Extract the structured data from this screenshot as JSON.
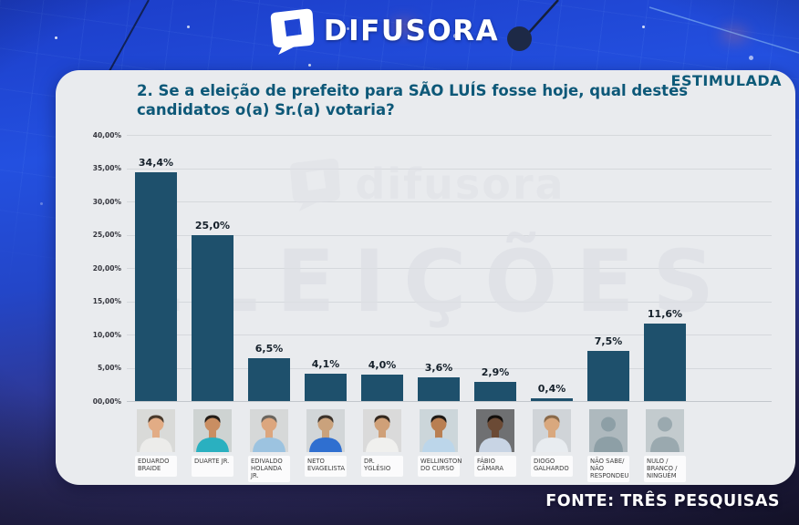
{
  "brand": {
    "name": "DIFUSORA",
    "watermark_name": "difusora"
  },
  "labels": {
    "methodology": "ESTIMULADA",
    "watermark_word": "ELEIÇÕES",
    "source": "FONTE: TRÊS PESQUISAS"
  },
  "question": "2. Se a eleição de prefeito para SÃO LUÍS fosse hoje, qual destes\ncandidatos o(a) Sr.(a) votaria?",
  "chart_data": {
    "type": "bar",
    "title": "2. Se a eleição de prefeito para SÃO LUÍS fosse hoje, qual destes candidatos o(a) Sr.(a) votaria?",
    "categories": [
      "EDUARDO BRAIDE",
      "DUARTE JR.",
      "EDIVALDO HOLANDA JR.",
      "NETO EVAGELISTA",
      "DR. YGLÉSIO",
      "WELLINGTON DO CURSO",
      "FÁBIO CÂMARA",
      "DIOGO GALHARDO",
      "NÃO SABE/ NÃO RESPONDEU",
      "NULO / BRANCO / NINGUÉM"
    ],
    "values": [
      34.4,
      25.0,
      6.5,
      4.1,
      4.0,
      3.6,
      2.9,
      0.4,
      7.5,
      11.6
    ],
    "value_labels": [
      "34,4%",
      "25,0%",
      "6,5%",
      "4,1%",
      "4,0%",
      "3,6%",
      "2,9%",
      "0,4%",
      "7,5%",
      "11,6%"
    ],
    "y_ticks": [
      "40,00%",
      "35,00%",
      "30,00%",
      "25,00%",
      "20,00%",
      "15,00%",
      "10,00%",
      "5,00%",
      "00,00%"
    ],
    "ylim": [
      0,
      40
    ],
    "grid": true,
    "legend": false,
    "xlabel": "",
    "ylabel": "",
    "bar_color": "#1e506c"
  },
  "candidates": [
    {
      "name": "EDUARDO BRAIDE",
      "photo": {
        "bg": "#d9dad8",
        "shirt": "#ececea",
        "skin": "#e2ac85",
        "hair": "#4a3a2c"
      }
    },
    {
      "name": "DUARTE JR.",
      "photo": {
        "bg": "#ced3d2",
        "shirt": "#2ab0c0",
        "skin": "#c98e62",
        "hair": "#241d18"
      }
    },
    {
      "name": "EDIVALDO HOLANDA JR.",
      "photo": {
        "bg": "#d6d8d8",
        "shirt": "#9cc3e0",
        "skin": "#dca67e",
        "hair": "#6b665f"
      }
    },
    {
      "name": "NETO EVAGELISTA",
      "photo": {
        "bg": "#d2d6d8",
        "shirt": "#2f6fd0",
        "skin": "#caa27c",
        "hair": "#3c332b"
      }
    },
    {
      "name": "DR. YGLÉSIO",
      "photo": {
        "bg": "#dadada",
        "shirt": "#f0f0ee",
        "skin": "#cfa078",
        "hair": "#35291f"
      }
    },
    {
      "name": "WELLINGTON DO CURSO",
      "photo": {
        "bg": "#ccd6da",
        "shirt": "#bcd6ea",
        "skin": "#b97f52",
        "hair": "#1e1a16"
      }
    },
    {
      "name": "FÁBIO CÂMARA",
      "photo": {
        "bg": "#6f7072",
        "shirt": "#c8d4e4",
        "skin": "#6b4a35",
        "hair": "#14100d"
      }
    },
    {
      "name": "DIOGO GALHARDO",
      "photo": {
        "bg": "#d0d4d8",
        "shirt": "#e8ecf0",
        "skin": "#d9a87e",
        "hair": "#8a6a4a"
      }
    },
    {
      "name": "NÃO SABE/ NÃO RESPONDEU",
      "photo": {
        "placeholder": true,
        "bg": "#aeb9be",
        "fig": "#8d9fa6"
      }
    },
    {
      "name": "NULO / BRANCO / NINGUÉM",
      "photo": {
        "placeholder": true,
        "bg": "#c3cbce",
        "fig": "#9aa9af"
      }
    }
  ]
}
